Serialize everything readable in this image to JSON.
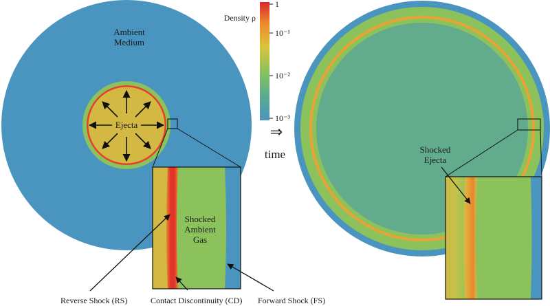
{
  "colorbar": {
    "title": "Density ρ",
    "ticks": [
      "1",
      "10⁻¹",
      "10⁻²",
      "10⁻³"
    ],
    "gradient": [
      "#d9262a",
      "#ee8a2a",
      "#d9c43c",
      "#86c25e",
      "#5aaa8e",
      "#4a95c0"
    ]
  },
  "left_panel": {
    "ambient_label": [
      "Ambient",
      "Medium"
    ],
    "ejecta_label": "Ejecta",
    "inset_label": [
      "Shocked",
      "Ambient",
      "Gas"
    ],
    "callouts": {
      "reverse_shock": "Reverse Shock (RS)",
      "contact_discontinuity": "Contact Discontinuity (CD)",
      "forward_shock": "Forward Shock (FS)"
    }
  },
  "transition": {
    "arrow_symbol": "⇒",
    "label": "time"
  },
  "right_panel": {
    "inset_label": [
      "Shocked",
      "Ejecta"
    ]
  },
  "colors": {
    "ambient": "#4a95c0",
    "shocked_ambient": "#8cc25b",
    "ejecta": "#d3b843",
    "shocked_ejecta": "#cfc047",
    "contact_discontinuity": "#e6402a",
    "interior_late": "#62ab8c",
    "orange_band": "#e9a235"
  }
}
